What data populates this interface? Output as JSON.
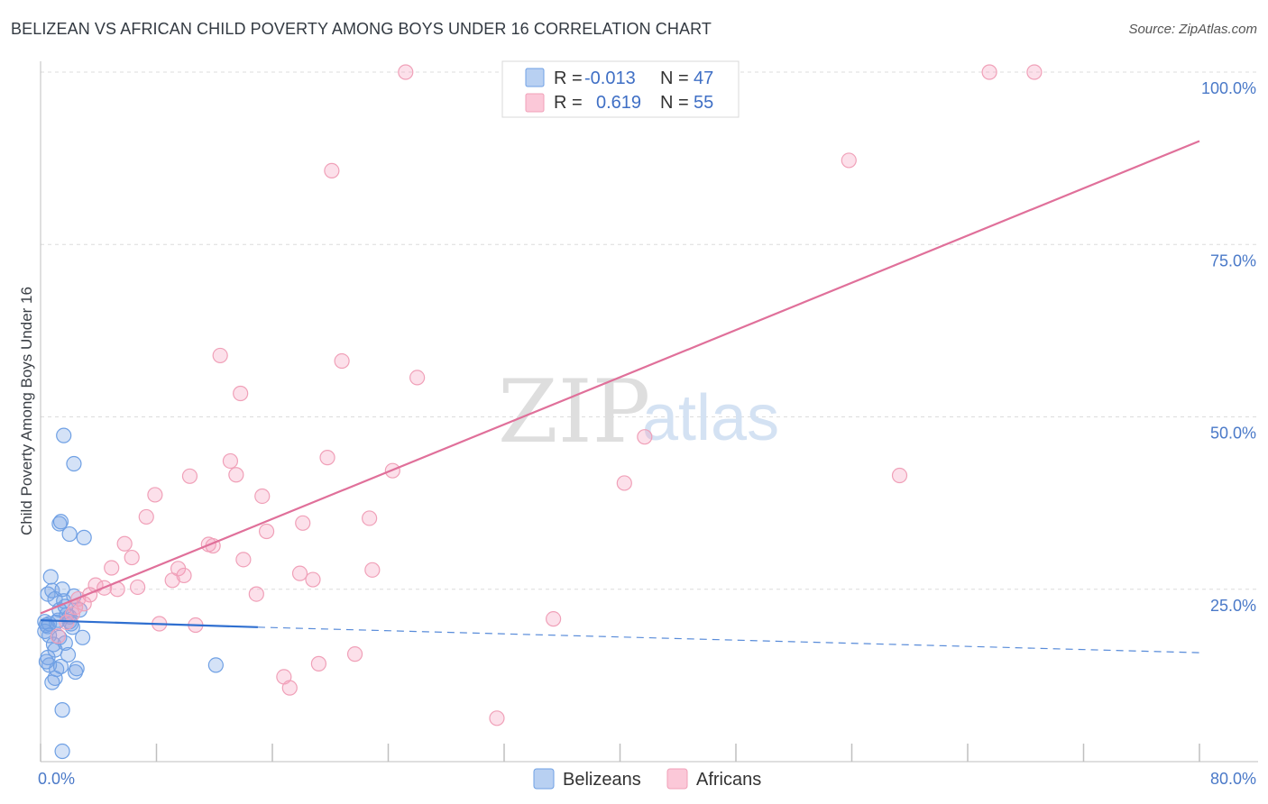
{
  "header": {
    "title": "BELIZEAN VS AFRICAN CHILD POVERTY AMONG BOYS UNDER 16 CORRELATION CHART",
    "source": "Source: ZipAtlas.com"
  },
  "watermark": {
    "zip": "ZIP",
    "atlas": "atlas"
  },
  "chart_data": {
    "type": "scatter",
    "title": "BELIZEAN VS AFRICAN CHILD POVERTY AMONG BOYS UNDER 16 CORRELATION CHART",
    "xlabel": "",
    "ylabel": "Child Poverty Among Boys Under 16",
    "xlim": [
      0,
      80
    ],
    "ylim": [
      0,
      100
    ],
    "x_tick_labels": [
      "0.0%",
      "80.0%"
    ],
    "y_ticks": [
      25,
      50,
      75,
      100
    ],
    "y_tick_labels": [
      "25.0%",
      "50.0%",
      "75.0%",
      "100.0%"
    ],
    "grid": true,
    "legend": {
      "position": "top-center",
      "entries": [
        {
          "r_label": "R =",
          "r_value": "-0.013",
          "n_label": "N =",
          "n_value": "47"
        },
        {
          "r_label": "R =",
          "r_value": "0.619",
          "n_label": "N =",
          "n_value": "55"
        }
      ]
    },
    "series": [
      {
        "name": "Belizeans",
        "color": "#6fa0e4",
        "line_color": "#2f6fd0",
        "trend": {
          "x0": 0,
          "y0": 20.5,
          "x1": 15,
          "y1": 19.5,
          "dash_to": 80,
          "dash_y": 15.8
        },
        "points": [
          [
            0.3,
            20.3
          ],
          [
            0.4,
            19.8
          ],
          [
            0.5,
            19.6
          ],
          [
            0.3,
            18.9
          ],
          [
            0.6,
            20.0
          ],
          [
            0.5,
            24.3
          ],
          [
            0.7,
            26.8
          ],
          [
            0.8,
            24.8
          ],
          [
            0.6,
            18.3
          ],
          [
            0.9,
            17.0
          ],
          [
            1.0,
            16.2
          ],
          [
            0.5,
            15.1
          ],
          [
            0.6,
            14.0
          ],
          [
            1.1,
            13.4
          ],
          [
            1.0,
            12.1
          ],
          [
            1.0,
            23.6
          ],
          [
            1.2,
            20.5
          ],
          [
            1.3,
            22.0
          ],
          [
            1.3,
            18.0
          ],
          [
            1.4,
            13.8
          ],
          [
            1.5,
            25.0
          ],
          [
            1.6,
            23.3
          ],
          [
            1.7,
            17.2
          ],
          [
            1.8,
            21.3
          ],
          [
            1.7,
            22.5
          ],
          [
            1.9,
            15.5
          ],
          [
            2.0,
            21.0
          ],
          [
            2.1,
            20.0
          ],
          [
            2.2,
            19.5
          ],
          [
            2.3,
            24.0
          ],
          [
            2.4,
            13.0
          ],
          [
            2.5,
            13.5
          ],
          [
            2.7,
            22.0
          ],
          [
            2.9,
            18.0
          ],
          [
            3.0,
            32.5
          ],
          [
            2.0,
            33.0
          ],
          [
            1.3,
            34.5
          ],
          [
            1.4,
            34.8
          ],
          [
            1.6,
            47.3
          ],
          [
            2.3,
            43.2
          ],
          [
            1.5,
            7.5
          ],
          [
            1.5,
            1.5
          ],
          [
            12.1,
            14.0
          ],
          [
            0.8,
            11.5
          ],
          [
            2.0,
            20.3
          ],
          [
            0.4,
            14.5
          ],
          [
            1.1,
            20.2
          ]
        ]
      },
      {
        "name": "Africans",
        "color": "#f0a0b8",
        "line_color": "#e0709a",
        "trend": {
          "x0": 0,
          "y0": 21.5,
          "x1": 80,
          "y1": 90
        },
        "points": [
          [
            25.2,
            100.0
          ],
          [
            65.5,
            100.0
          ],
          [
            68.6,
            100.0
          ],
          [
            20.1,
            85.7
          ],
          [
            55.8,
            87.2
          ],
          [
            12.4,
            58.9
          ],
          [
            20.8,
            58.1
          ],
          [
            26.0,
            55.7
          ],
          [
            13.8,
            53.4
          ],
          [
            41.7,
            47.1
          ],
          [
            13.1,
            43.6
          ],
          [
            19.8,
            44.1
          ],
          [
            10.3,
            41.4
          ],
          [
            13.5,
            41.6
          ],
          [
            24.3,
            42.2
          ],
          [
            40.3,
            40.4
          ],
          [
            59.3,
            41.5
          ],
          [
            7.9,
            38.7
          ],
          [
            15.3,
            38.5
          ],
          [
            7.3,
            35.5
          ],
          [
            18.1,
            34.6
          ],
          [
            22.7,
            35.3
          ],
          [
            15.6,
            33.4
          ],
          [
            5.8,
            31.6
          ],
          [
            11.6,
            31.5
          ],
          [
            11.9,
            31.3
          ],
          [
            6.3,
            29.6
          ],
          [
            14.0,
            29.3
          ],
          [
            4.9,
            28.1
          ],
          [
            9.5,
            28.0
          ],
          [
            17.9,
            27.3
          ],
          [
            22.9,
            27.8
          ],
          [
            9.9,
            27.0
          ],
          [
            18.8,
            26.4
          ],
          [
            9.1,
            26.3
          ],
          [
            3.8,
            25.6
          ],
          [
            4.4,
            25.2
          ],
          [
            5.3,
            25.0
          ],
          [
            6.7,
            25.3
          ],
          [
            3.4,
            24.2
          ],
          [
            14.9,
            24.3
          ],
          [
            2.6,
            23.6
          ],
          [
            3.0,
            22.9
          ],
          [
            2.4,
            22.4
          ],
          [
            1.8,
            20.2
          ],
          [
            8.2,
            20.0
          ],
          [
            10.7,
            19.8
          ],
          [
            35.4,
            20.7
          ],
          [
            21.7,
            15.6
          ],
          [
            19.2,
            14.2
          ],
          [
            16.8,
            12.3
          ],
          [
            17.2,
            10.7
          ],
          [
            31.5,
            6.3
          ],
          [
            2.2,
            21.4
          ],
          [
            1.2,
            18.2
          ]
        ]
      }
    ]
  }
}
